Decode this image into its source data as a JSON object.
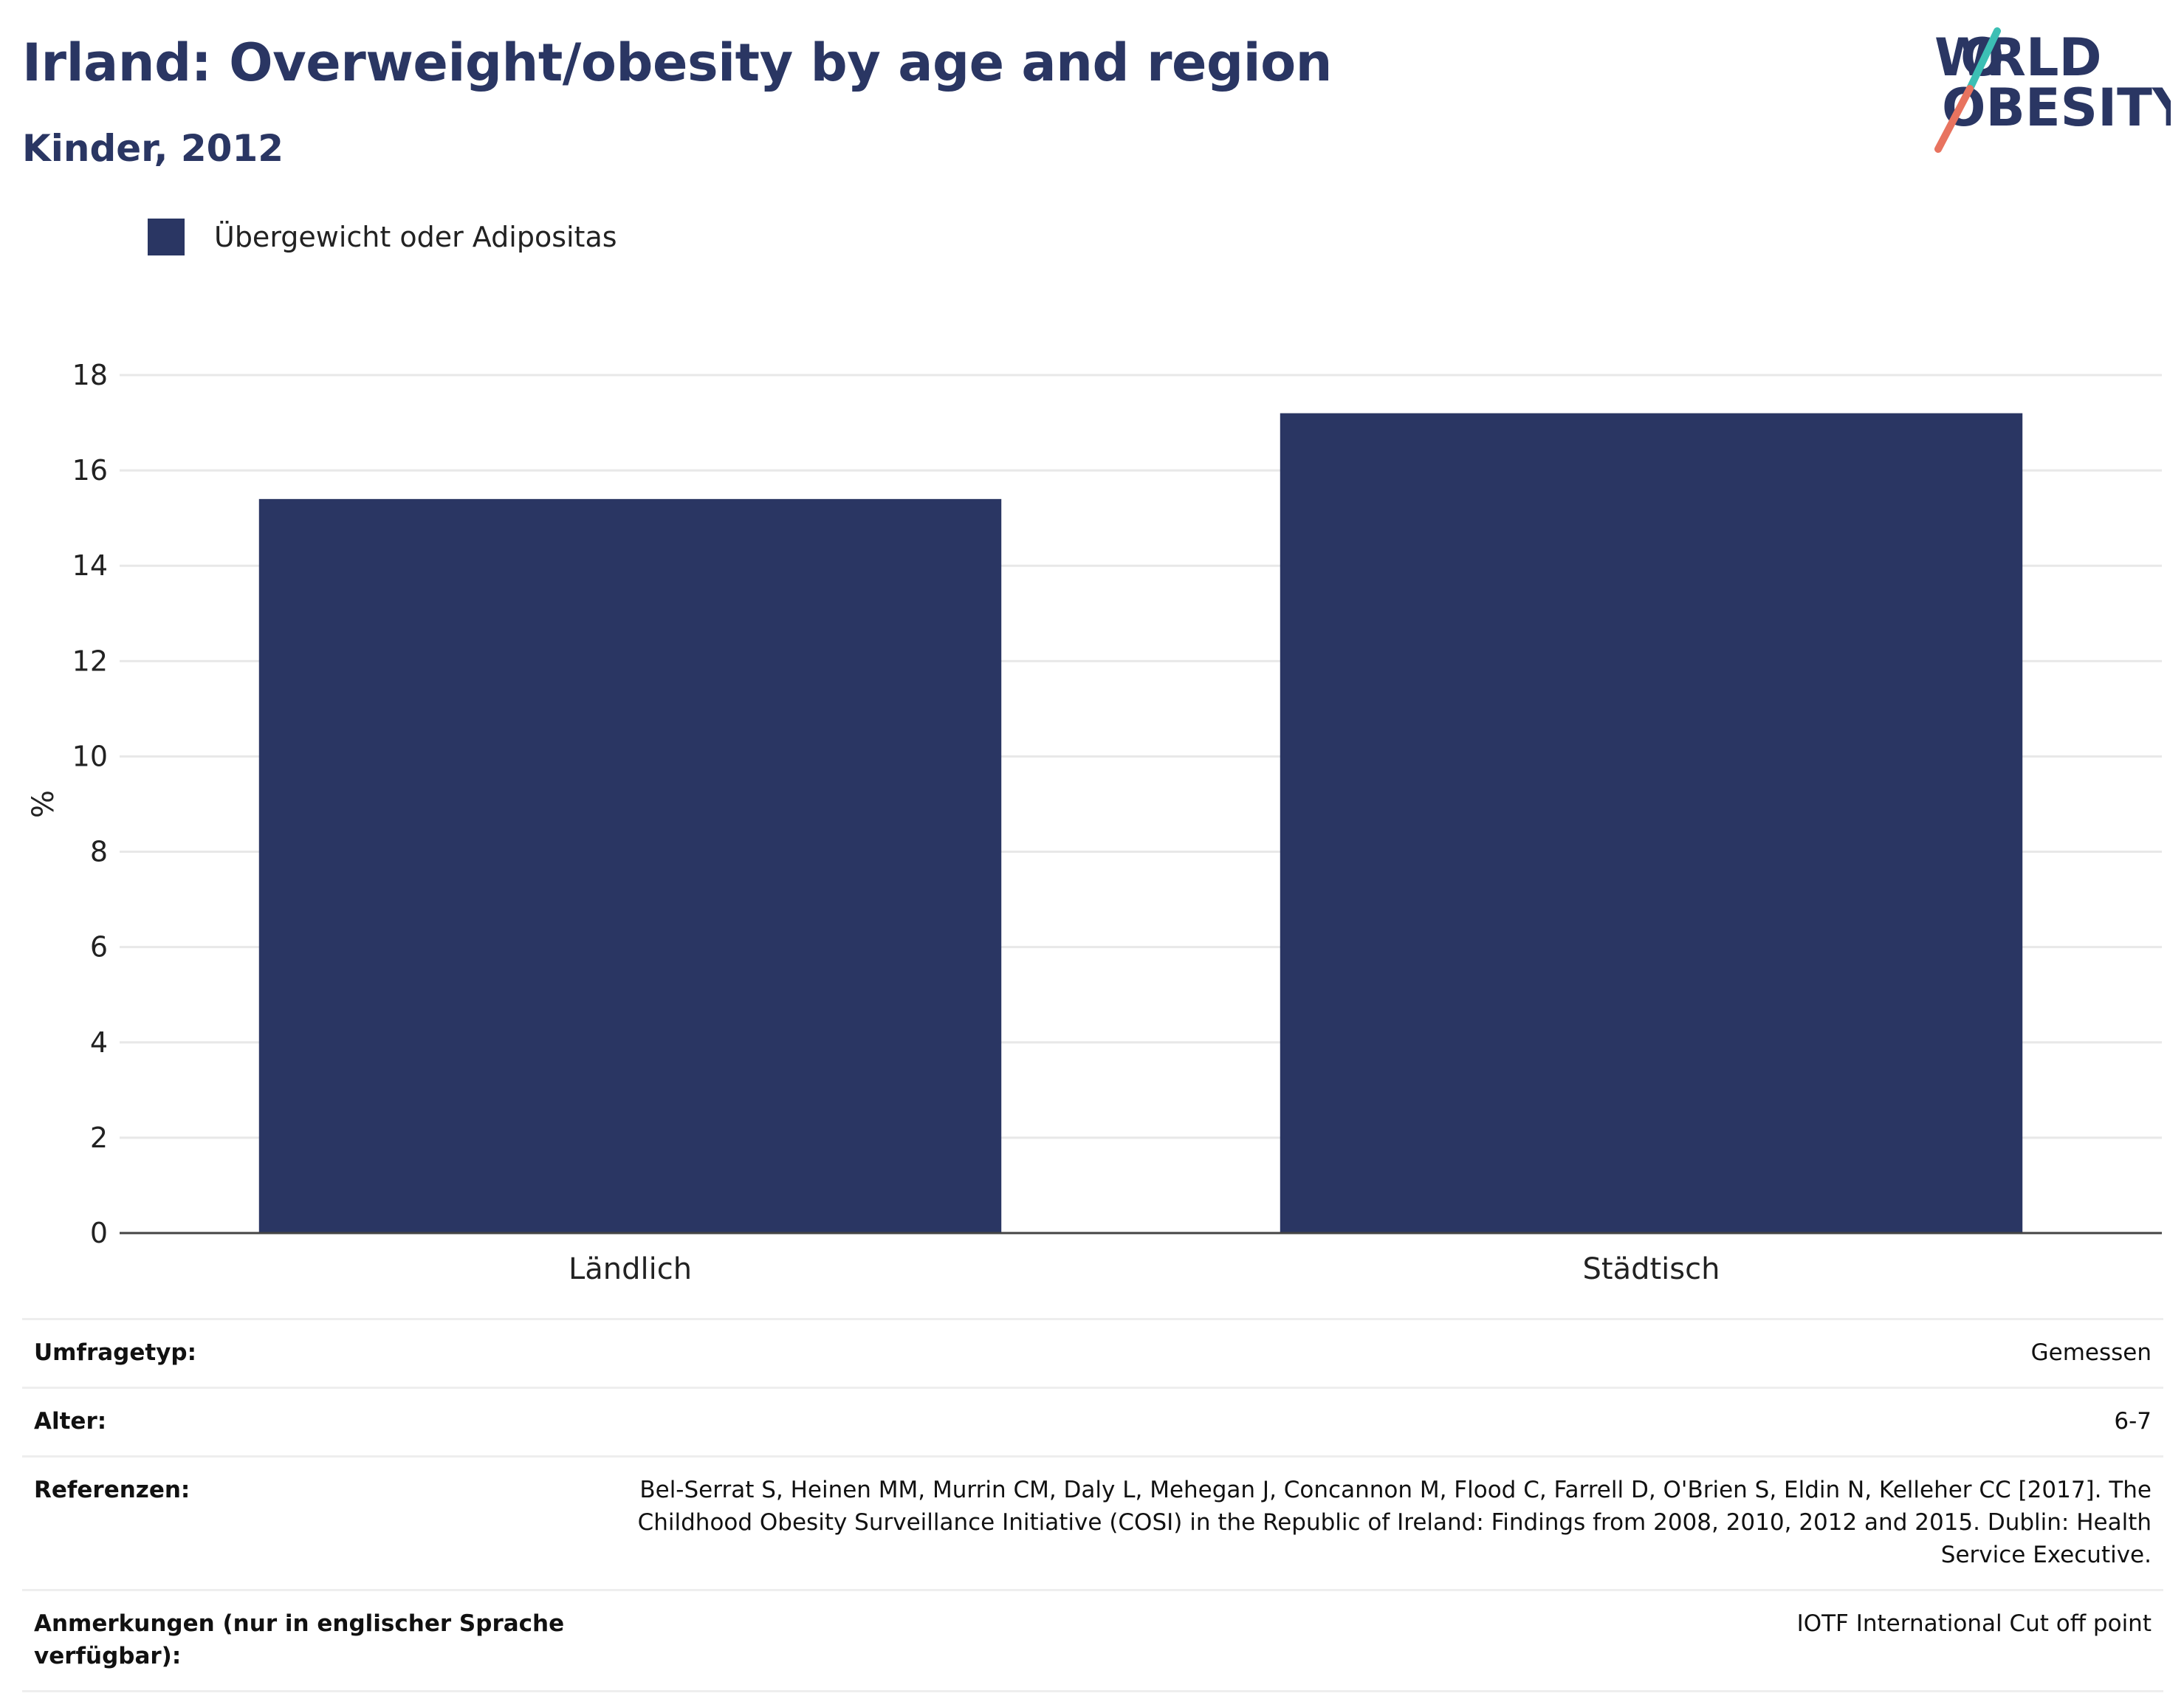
{
  "header": {
    "title": "Irland: Overweight/obesity by age and region",
    "subtitle": "Kinder, 2012"
  },
  "logo": {
    "line1": "WORLD",
    "line2": "OBESITY"
  },
  "colors": {
    "bar": "#2a3663",
    "text": "#2a3663",
    "logo_teal": "#3cbfb4",
    "logo_coral": "#e8735f"
  },
  "chart_data": {
    "type": "bar",
    "categories": [
      "Ländlich",
      "Städtisch"
    ],
    "series": [
      {
        "name": "Übergewicht oder Adipositas",
        "values": [
          15.4,
          17.2
        ]
      }
    ],
    "ylabel": "%",
    "xlabel": "",
    "ylim": [
      0,
      18
    ],
    "yticks": [
      0,
      2,
      4,
      6,
      8,
      10,
      12,
      14,
      16,
      18
    ],
    "grid": true,
    "legend": "top-left"
  },
  "meta": [
    {
      "label": "Umfragetyp:",
      "value": "Gemessen"
    },
    {
      "label": "Alter:",
      "value": "6-7"
    },
    {
      "label": "Referenzen:",
      "value": "Bel-Serrat S, Heinen MM, Murrin CM, Daly L, Mehegan J, Concannon M, Flood C, Farrell D, O'Brien S, Eldin N, Kelleher CC [2017]. The Childhood Obesity Surveillance Initiative (COSI) in the Republic of Ireland: Findings from 2008, 2010, 2012 and 2015. Dublin: Health Service Executive."
    },
    {
      "label": "Anmerkungen (nur in englischer Sprache verfügbar):",
      "value": "IOTF International Cut off point"
    }
  ]
}
